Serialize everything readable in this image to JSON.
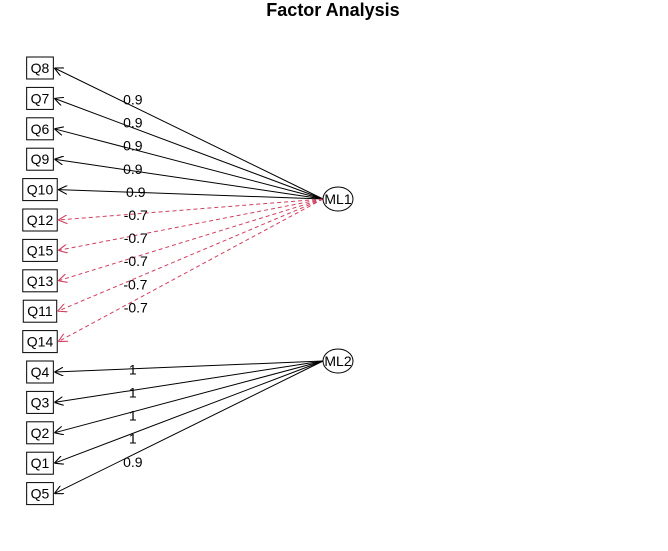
{
  "title": "Factor Analysis",
  "colors": {
    "positive_edge": "#000000",
    "negative_edge": "#d04060"
  },
  "items": [
    {
      "id": "Q8",
      "label": "Q8"
    },
    {
      "id": "Q7",
      "label": "Q7"
    },
    {
      "id": "Q6",
      "label": "Q6"
    },
    {
      "id": "Q9",
      "label": "Q9"
    },
    {
      "id": "Q10",
      "label": "Q10"
    },
    {
      "id": "Q12",
      "label": "Q12"
    },
    {
      "id": "Q15",
      "label": "Q15"
    },
    {
      "id": "Q13",
      "label": "Q13"
    },
    {
      "id": "Q11",
      "label": "Q11"
    },
    {
      "id": "Q14",
      "label": "Q14"
    },
    {
      "id": "Q4",
      "label": "Q4"
    },
    {
      "id": "Q3",
      "label": "Q3"
    },
    {
      "id": "Q2",
      "label": "Q2"
    },
    {
      "id": "Q1",
      "label": "Q1"
    },
    {
      "id": "Q5",
      "label": "Q5"
    }
  ],
  "factors": [
    {
      "id": "ML1",
      "label": "ML1"
    },
    {
      "id": "ML2",
      "label": "ML2"
    }
  ],
  "loadings": [
    {
      "factor": "ML1",
      "item": "Q8",
      "label": "0.9",
      "sign": "positive"
    },
    {
      "factor": "ML1",
      "item": "Q7",
      "label": "0.9",
      "sign": "positive"
    },
    {
      "factor": "ML1",
      "item": "Q6",
      "label": "0.9",
      "sign": "positive"
    },
    {
      "factor": "ML1",
      "item": "Q9",
      "label": "0.9",
      "sign": "positive"
    },
    {
      "factor": "ML1",
      "item": "Q10",
      "label": "0.9",
      "sign": "positive"
    },
    {
      "factor": "ML1",
      "item": "Q12",
      "label": "-0.7",
      "sign": "negative"
    },
    {
      "factor": "ML1",
      "item": "Q15",
      "label": "-0.7",
      "sign": "negative"
    },
    {
      "factor": "ML1",
      "item": "Q13",
      "label": "-0.7",
      "sign": "negative"
    },
    {
      "factor": "ML1",
      "item": "Q11",
      "label": "-0.7",
      "sign": "negative"
    },
    {
      "factor": "ML1",
      "item": "Q14",
      "label": "-0.7",
      "sign": "negative"
    },
    {
      "factor": "ML2",
      "item": "Q4",
      "label": "1",
      "sign": "positive"
    },
    {
      "factor": "ML2",
      "item": "Q3",
      "label": "1",
      "sign": "positive"
    },
    {
      "factor": "ML2",
      "item": "Q2",
      "label": "1",
      "sign": "positive"
    },
    {
      "factor": "ML2",
      "item": "Q1",
      "label": "1",
      "sign": "positive"
    },
    {
      "factor": "ML2",
      "item": "Q5",
      "label": "0.9",
      "sign": "positive"
    }
  ]
}
